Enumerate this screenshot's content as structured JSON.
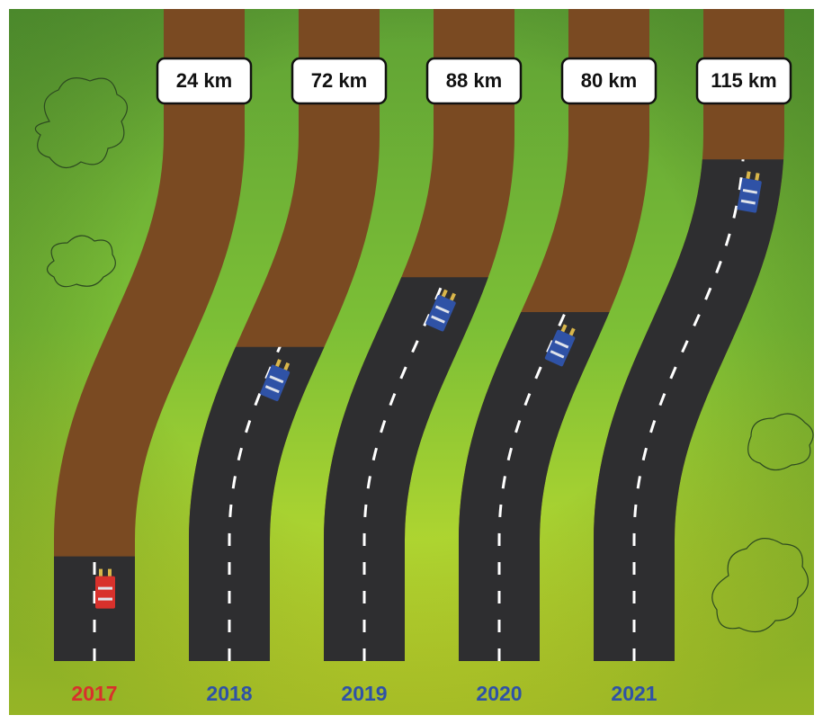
{
  "chart_data": {
    "type": "bar",
    "categories": [
      "2017",
      "2018",
      "2019",
      "2020",
      "2021"
    ],
    "values": [
      24,
      72,
      88,
      80,
      115
    ],
    "value_labels": [
      "24 km",
      "72 km",
      "88 km",
      "80 km",
      "115 km"
    ],
    "colors": [
      "#d8312c",
      "#2f52a6",
      "#2f52a6",
      "#2f52a6",
      "#2f52a6"
    ]
  }
}
